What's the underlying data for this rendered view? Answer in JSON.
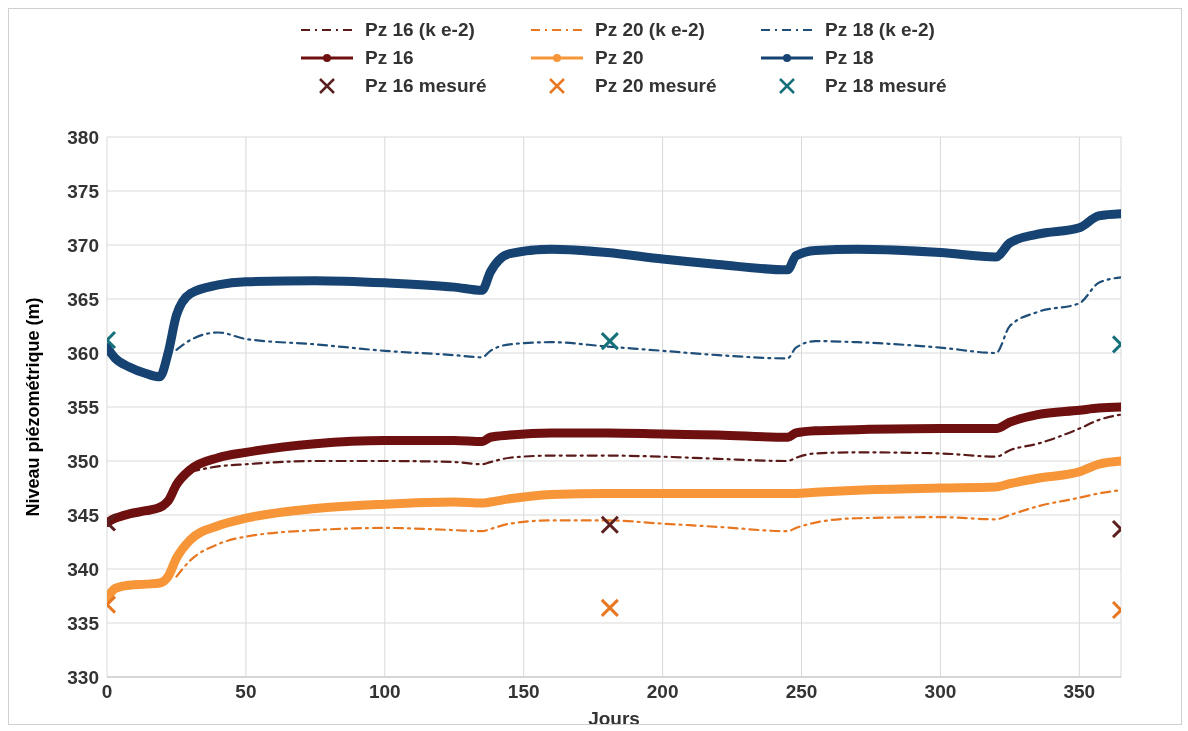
{
  "chart_data": {
    "type": "line",
    "xlabel": "Jours",
    "ylabel": "Niveau piézométrique (m)",
    "xlim": [
      0,
      365
    ],
    "xticks": [
      0,
      50,
      100,
      150,
      200,
      250,
      300,
      350
    ],
    "ylim": [
      330,
      380
    ],
    "yticks": [
      330,
      335,
      340,
      345,
      350,
      355,
      360,
      365,
      370,
      375,
      380
    ],
    "grid": true,
    "legend": "top",
    "series": [
      {
        "name": "Pz 16 (k e-2)",
        "color": "#5a1a1a",
        "line_style": "dashed",
        "marker": "none",
        "x": [
          30,
          40,
          50,
          75,
          100,
          125,
          135,
          138,
          145,
          160,
          180,
          200,
          220,
          245,
          248,
          255,
          270,
          300,
          320,
          325,
          335,
          350,
          357,
          365
        ],
        "values": [
          349,
          349.5,
          349.7,
          350,
          350,
          349.9,
          349.7,
          349.9,
          350.3,
          350.5,
          350.5,
          350.4,
          350.2,
          350,
          350.3,
          350.7,
          350.8,
          350.7,
          350.4,
          351,
          351.6,
          353,
          353.8,
          354.3
        ]
      },
      {
        "name": "Pz 20 (k e-2)",
        "color": "#e87722",
        "line_style": "dashed",
        "marker": "none",
        "x": [
          25,
          30,
          40,
          50,
          75,
          100,
          125,
          135,
          138,
          145,
          160,
          180,
          200,
          220,
          245,
          248,
          255,
          270,
          300,
          320,
          325,
          335,
          350,
          357,
          365
        ],
        "values": [
          339.3,
          340.8,
          342.3,
          343,
          343.6,
          343.8,
          343.6,
          343.5,
          343.7,
          344.2,
          344.5,
          344.5,
          344.2,
          343.9,
          343.5,
          343.8,
          344.3,
          344.7,
          344.8,
          344.6,
          345,
          345.8,
          346.6,
          347,
          347.3
        ]
      },
      {
        "name": "Pz 18 (k e-2)",
        "color": "#1f4e79",
        "line_style": "dashed",
        "marker": "none",
        "x": [
          25,
          30,
          40,
          50,
          75,
          100,
          125,
          135,
          138,
          145,
          160,
          180,
          200,
          220,
          245,
          248,
          255,
          270,
          300,
          320,
          325,
          335,
          350,
          357,
          365
        ],
        "values": [
          360.3,
          361.2,
          361.9,
          361.3,
          360.8,
          360.2,
          359.8,
          359.6,
          360.2,
          360.8,
          361,
          360.6,
          360.2,
          359.8,
          359.5,
          360.5,
          361.1,
          361,
          360.5,
          360,
          362.5,
          363.8,
          364.6,
          366.5,
          367
        ]
      },
      {
        "name": "Pz 16",
        "color": "#6e1010",
        "line_style": "solid",
        "marker": "circle",
        "x": [
          0,
          3,
          8,
          14,
          19,
          22,
          25,
          30,
          40,
          50,
          75,
          100,
          125,
          135,
          138,
          145,
          160,
          180,
          200,
          220,
          245,
          248,
          255,
          270,
          300,
          320,
          325,
          335,
          350,
          357,
          365
        ],
        "values": [
          344.3,
          344.7,
          345.1,
          345.4,
          345.7,
          346.3,
          347.8,
          349.2,
          350.3,
          350.8,
          351.6,
          351.9,
          351.9,
          351.8,
          352.2,
          352.4,
          352.6,
          352.6,
          352.5,
          352.4,
          352.2,
          352.6,
          352.8,
          352.9,
          353,
          353,
          353.6,
          354.3,
          354.7,
          354.9,
          355
        ]
      },
      {
        "name": "Pz 20",
        "color": "#f79638",
        "line_style": "solid",
        "marker": "circle",
        "x": [
          0,
          3,
          8,
          14,
          19,
          22,
          25,
          30,
          40,
          50,
          75,
          100,
          125,
          135,
          138,
          145,
          160,
          180,
          200,
          220,
          245,
          248,
          255,
          270,
          300,
          320,
          325,
          335,
          350,
          357,
          365
        ],
        "values": [
          337.3,
          338.2,
          338.5,
          338.6,
          338.7,
          339.3,
          341,
          342.7,
          344,
          344.7,
          345.6,
          346,
          346.2,
          346.1,
          346.2,
          346.5,
          346.9,
          347,
          347,
          347,
          347,
          347,
          347.1,
          347.3,
          347.5,
          347.6,
          347.9,
          348.4,
          349,
          349.7,
          350
        ]
      },
      {
        "name": "Pz 18",
        "color": "#174373",
        "line_style": "solid",
        "marker": "circle",
        "x": [
          0,
          3,
          8,
          14,
          19,
          22,
          25,
          30,
          40,
          50,
          75,
          100,
          125,
          135,
          138,
          145,
          160,
          180,
          200,
          220,
          245,
          248,
          255,
          270,
          300,
          320,
          325,
          335,
          350,
          357,
          365
        ],
        "values": [
          360.5,
          359.5,
          358.7,
          358.1,
          357.8,
          360,
          363.5,
          365.5,
          366.3,
          366.6,
          366.7,
          366.5,
          366.1,
          365.8,
          367.5,
          369.2,
          369.6,
          369.3,
          368.7,
          368.2,
          367.7,
          369,
          369.5,
          369.6,
          369.3,
          368.9,
          370.2,
          371,
          371.6,
          372.7,
          372.9
        ]
      },
      {
        "name": "Pz 16 mesuré",
        "type": "scatter",
        "color": "#5b1f1f",
        "marker": "cross",
        "x": [
          0,
          181,
          365
        ],
        "values": [
          344.3,
          344.1,
          343.7
        ]
      },
      {
        "name": "Pz 20 mesuré",
        "type": "scatter",
        "color": "#e87722",
        "marker": "cross",
        "x": [
          0,
          181,
          365
        ],
        "values": [
          336.7,
          336.4,
          336.2
        ]
      },
      {
        "name": "Pz 18 mesuré",
        "type": "scatter",
        "color": "#15707a",
        "marker": "cross",
        "x": [
          0,
          181,
          365
        ],
        "values": [
          361.2,
          361.1,
          360.8
        ]
      }
    ]
  }
}
